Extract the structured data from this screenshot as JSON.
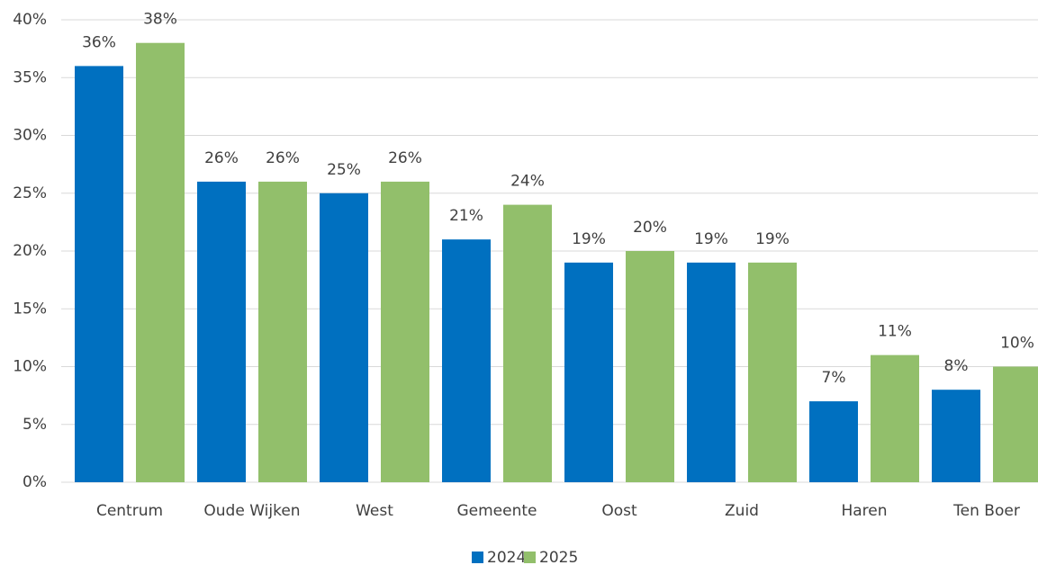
{
  "chart_data": {
    "type": "bar",
    "categories": [
      "Centrum",
      "Oude Wijken",
      "West",
      "Gemeente",
      "Oost",
      "Zuid",
      "Haren",
      "Ten Boer"
    ],
    "series": [
      {
        "name": "2024",
        "color": "#0070c0",
        "values": [
          36,
          26,
          25,
          21,
          19,
          19,
          7,
          8
        ],
        "value_labels": [
          "36%",
          "26%",
          "25%",
          "21%",
          "19%",
          "19%",
          "7%",
          "8%"
        ]
      },
      {
        "name": "2025",
        "color": "#92bf6b",
        "values": [
          38,
          26,
          26,
          24,
          20,
          19,
          11,
          10
        ],
        "value_labels": [
          "38%",
          "26%",
          "26%",
          "24%",
          "20%",
          "19%",
          "11%",
          "10%"
        ]
      }
    ],
    "ylim": [
      0,
      40
    ],
    "yticks": [
      {
        "value": 0,
        "label": "0%"
      },
      {
        "value": 5,
        "label": "5%"
      },
      {
        "value": 10,
        "label": "10%"
      },
      {
        "value": 15,
        "label": "15%"
      },
      {
        "value": 20,
        "label": "20%"
      },
      {
        "value": 25,
        "label": "25%"
      },
      {
        "value": 30,
        "label": "30%"
      },
      {
        "value": 35,
        "label": "35%"
      },
      {
        "value": 40,
        "label": "40%"
      }
    ],
    "grid": true,
    "legend": "bottom"
  }
}
